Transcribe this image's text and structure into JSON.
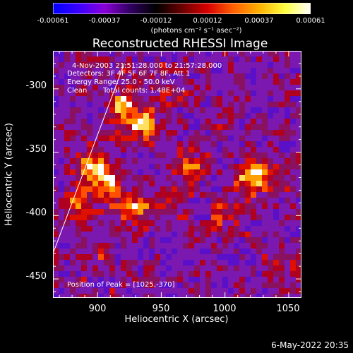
{
  "colorbar": {
    "tick_labels": [
      "-0.00061",
      "-0.00037",
      "-0.00012",
      "0.00012",
      "0.00037",
      "0.00061"
    ],
    "unit_label": "(photons cm⁻² s⁻¹ asec⁻²)",
    "colors": [
      "#0000ff",
      "#3a00ff",
      "#8a00d8",
      "#300060",
      "#000000",
      "#6a0000",
      "#d80000",
      "#ff6000",
      "#ffb000",
      "#ffff40",
      "#ffffff"
    ]
  },
  "chart_data": {
    "type": "heatmap",
    "title": "Reconstructed RHESSI Image",
    "xlabel": "Heliocentric X (arcsec)",
    "ylabel": "Heliocentric Y (arcsec)",
    "xlim": [
      865,
      1060
    ],
    "ylim": [
      -465,
      -270
    ],
    "xticks": [
      900,
      950,
      1000,
      1050
    ],
    "yticks": [
      -300,
      -350,
      -400,
      -450
    ],
    "annotations": {
      "time": "4-Nov-2003 21:51:28.000 to 21:57:28.000",
      "detectors": "Detectors: 3F 4F 5F 6F 7F 8F, Att 1",
      "energy": "Energy Range: 25.0 - 50.0 keV",
      "method": "Clean",
      "counts": "Total counts: 1.48E+04",
      "peak": "Position of Peak = [1025,-370]"
    },
    "peak": [
      1025,
      -370
    ],
    "limb_line": [
      [
        865,
        -430
      ],
      [
        921,
        -280
      ]
    ],
    "bright_sources": [
      {
        "x": 920,
        "y": -315,
        "strength": 0.85
      },
      {
        "x": 935,
        "y": -330,
        "strength": 0.7
      },
      {
        "x": 895,
        "y": -360,
        "strength": 0.75
      },
      {
        "x": 910,
        "y": -375,
        "strength": 0.7
      },
      {
        "x": 885,
        "y": -390,
        "strength": 0.65
      },
      {
        "x": 930,
        "y": -395,
        "strength": 0.6
      },
      {
        "x": 955,
        "y": -390,
        "strength": 0.5
      },
      {
        "x": 975,
        "y": -360,
        "strength": 0.55
      },
      {
        "x": 1025,
        "y": -370,
        "strength": 1.0
      },
      {
        "x": 1000,
        "y": -400,
        "strength": 0.45
      },
      {
        "x": 900,
        "y": -425,
        "strength": 0.4
      },
      {
        "x": 960,
        "y": -305,
        "strength": 0.35
      },
      {
        "x": 1045,
        "y": -440,
        "strength": 0.3
      }
    ]
  },
  "footer": "6-May-2022 20:35"
}
